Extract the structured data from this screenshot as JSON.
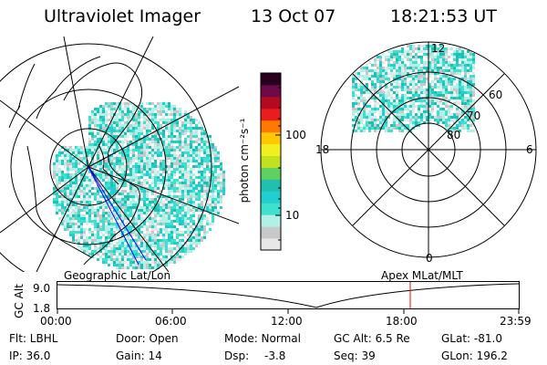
{
  "header": {
    "title": "Ultraviolet Imager",
    "date": "13 Oct 07",
    "time": "18:21:53 UT"
  },
  "colorbar": {
    "label": "photon cm⁻²s⁻¹",
    "ticks": [
      "100",
      "10"
    ],
    "scale": "log",
    "colors": [
      "#e8e8e8",
      "#c8c8c8",
      "#b0f0e6",
      "#40e0d0",
      "#20d0d0",
      "#20c0b0",
      "#60d060",
      "#c0e020",
      "#f0f020",
      "#ffc800",
      "#ff7800",
      "#e81e1e",
      "#b40a1e",
      "#6e0a4a",
      "#28001e"
    ]
  },
  "left_map": {
    "projection": "geographic",
    "line_color": "#000000",
    "track_color": "#0000ff"
  },
  "right_map": {
    "labels": {
      "mlt_top": "12",
      "mlt_left": "18",
      "mlt_right": "6",
      "mlt_bottom": "0",
      "lat_60": "60",
      "lat_70": "70",
      "lat_80": "80"
    }
  },
  "timeline": {
    "left_title": "Geographic Lat/Lon",
    "right_title": "Apex MLat/MLT",
    "y_label": "GC Alt",
    "y_top": "9.0",
    "y_bottom": "1.8",
    "x_ticks": [
      "00:00",
      "06:00",
      "12:00",
      "18:00",
      "23:59"
    ],
    "marker_color": "#ff0000"
  },
  "status": {
    "flt": "Flt: LBHL",
    "ip": "IP: 36.0",
    "door": "Door: Open",
    "gain": "Gain: 14",
    "mode": "Mode: Normal",
    "dsp_label": "Dsp:",
    "dsp_value": "-3.8",
    "gcalt": "GC Alt: 6.5 Re",
    "seq": "Seq: 39",
    "glat": "GLat: -81.0",
    "glon": "GLon: 196.2"
  }
}
